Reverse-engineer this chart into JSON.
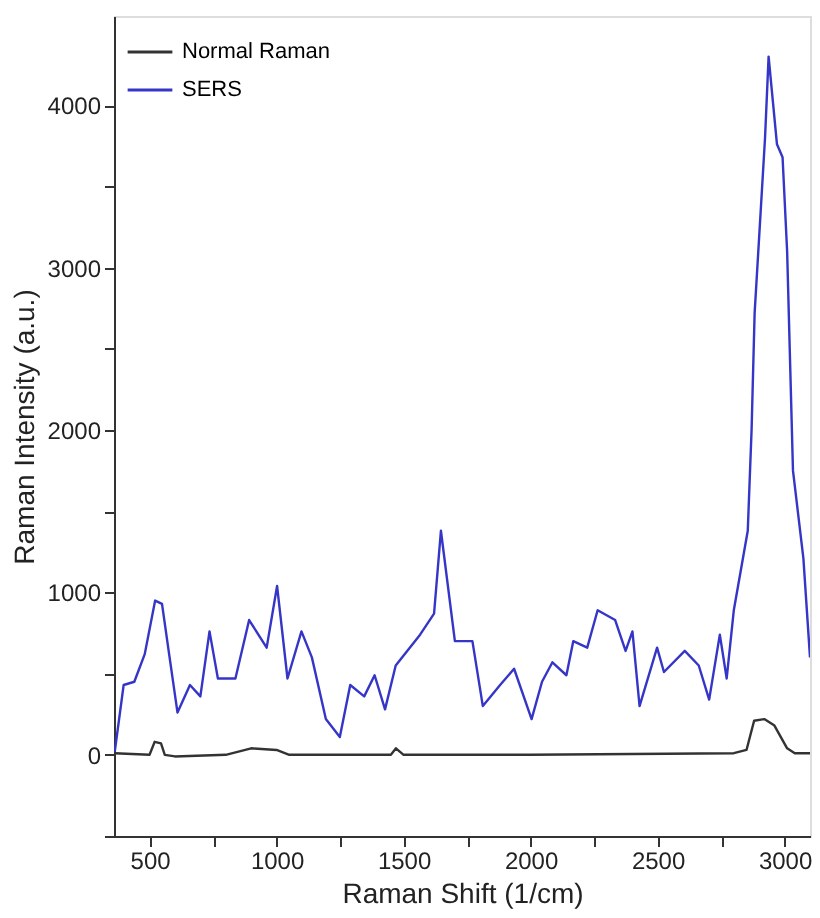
{
  "chart_data": {
    "type": "line",
    "xlabel": "Raman Shift (1/cm)",
    "ylabel": "Raman Intensity (a.u.)",
    "xlim": [
      360,
      3100
    ],
    "xticks": [
      500,
      {
        "value": 750,
        "label": null
      },
      1000,
      {
        "value": 1250,
        "label": null
      },
      1500,
      {
        "value": 1750,
        "label": null
      },
      2000,
      {
        "value": 2250,
        "label": null
      },
      2500,
      {
        "value": 2750,
        "label": null
      },
      3000
    ],
    "ylim": [
      -500,
      4550
    ],
    "yticks": [
      {
        "value": -500,
        "label": null
      },
      0,
      {
        "value": 500,
        "label": null
      },
      1000,
      {
        "value": 1500,
        "label": null
      },
      2000,
      {
        "value": 2500,
        "label": null
      },
      3000,
      {
        "value": 3500,
        "label": null
      },
      4000
    ],
    "grid": false,
    "legend": "top left",
    "line_style": "solid",
    "marker": "none",
    "series": [
      {
        "name": "Normal Raman",
        "color": "#333333",
        "x": [
          363,
          500,
          520,
          545,
          560,
          600,
          800,
          900,
          1000,
          1050,
          1200,
          1450,
          1470,
          1500,
          2000,
          2800,
          2850,
          2880,
          2920,
          2960,
          3010,
          3040,
          3100
        ],
        "values": [
          10,
          0,
          80,
          70,
          0,
          -10,
          0,
          40,
          30,
          0,
          0,
          0,
          40,
          0,
          0,
          10,
          30,
          210,
          220,
          180,
          40,
          10,
          10
        ]
      },
      {
        "name": "SERS",
        "color": "#3535c8",
        "x": [
          363,
          398,
          440,
          481,
          522,
          549,
          577,
          610,
          659,
          700,
          736,
          769,
          838,
          892,
          961,
          1002,
          1043,
          1098,
          1139,
          1194,
          1249,
          1290,
          1345,
          1386,
          1427,
          1469,
          1565,
          1620,
          1647,
          1702,
          1771,
          1812,
          1880,
          1935,
          2004,
          2045,
          2086,
          2141,
          2168,
          2223,
          2264,
          2333,
          2374,
          2401,
          2429,
          2498,
          2525,
          2607,
          2662,
          2703,
          2745,
          2772,
          2800,
          2855,
          2870,
          2882,
          2923,
          2937,
          2970,
          2992,
          3010,
          3033,
          3074,
          3100
        ],
        "values": [
          20,
          430,
          450,
          620,
          950,
          930,
          620,
          260,
          430,
          360,
          760,
          470,
          470,
          830,
          660,
          1040,
          470,
          760,
          600,
          220,
          110,
          430,
          360,
          490,
          280,
          550,
          740,
          870,
          1380,
          700,
          700,
          300,
          430,
          530,
          220,
          450,
          570,
          490,
          700,
          660,
          890,
          830,
          640,
          760,
          300,
          660,
          510,
          640,
          550,
          340,
          740,
          470,
          890,
          1380,
          2000,
          2720,
          3800,
          4300,
          3760,
          3680,
          3100,
          1750,
          1210,
          600
        ]
      }
    ]
  }
}
